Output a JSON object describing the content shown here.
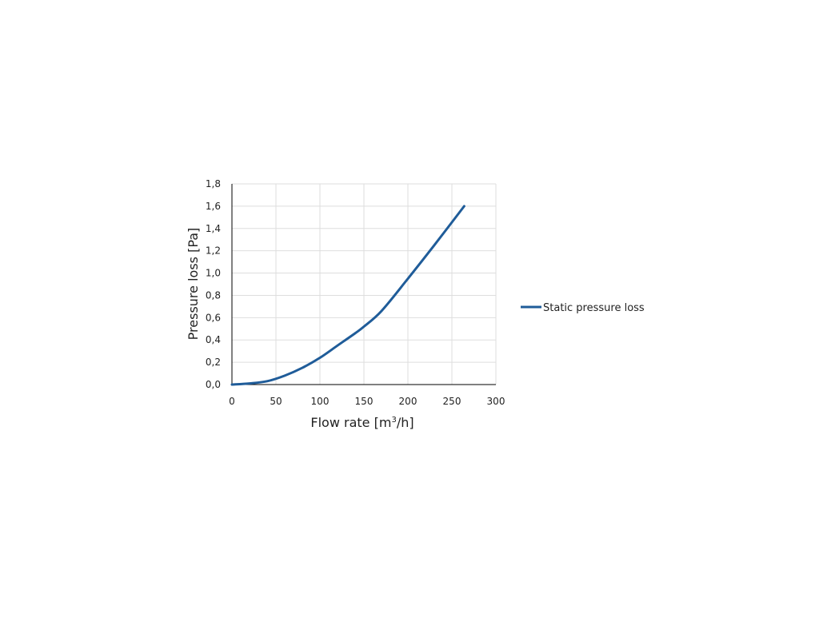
{
  "chart_data": {
    "type": "line",
    "title": "",
    "xlabel": "Flow rate [m³/h]",
    "xlabel_main": "Flow rate [m",
    "xlabel_sup": "3",
    "xlabel_tail": "/h]",
    "ylabel": "Pressure loss [Pa]",
    "xlim": [
      0,
      300
    ],
    "ylim": [
      0,
      1.8
    ],
    "x_ticks": [
      0,
      50,
      100,
      150,
      200,
      250,
      300
    ],
    "x_tick_labels": [
      "0",
      "50",
      "100",
      "150",
      "200",
      "250",
      "300"
    ],
    "y_ticks": [
      0,
      0.2,
      0.4,
      0.6,
      0.8,
      1.0,
      1.2,
      1.4,
      1.6,
      1.8
    ],
    "y_tick_labels": [
      "0,0",
      "0,2",
      "0,4",
      "0,6",
      "0,8",
      "1,0",
      "1,2",
      "1,4",
      "1,6",
      "1,8"
    ],
    "grid": true,
    "legend_position": "right",
    "series": [
      {
        "name": "Static pressure loss",
        "color": "#1f5c99",
        "x": [
          0,
          20,
          40,
          60,
          80,
          100,
          120,
          140,
          150,
          170,
          200,
          230,
          264
        ],
        "y": [
          0,
          0.01,
          0.03,
          0.08,
          0.15,
          0.24,
          0.35,
          0.46,
          0.52,
          0.66,
          0.95,
          1.25,
          1.6
        ]
      }
    ]
  }
}
